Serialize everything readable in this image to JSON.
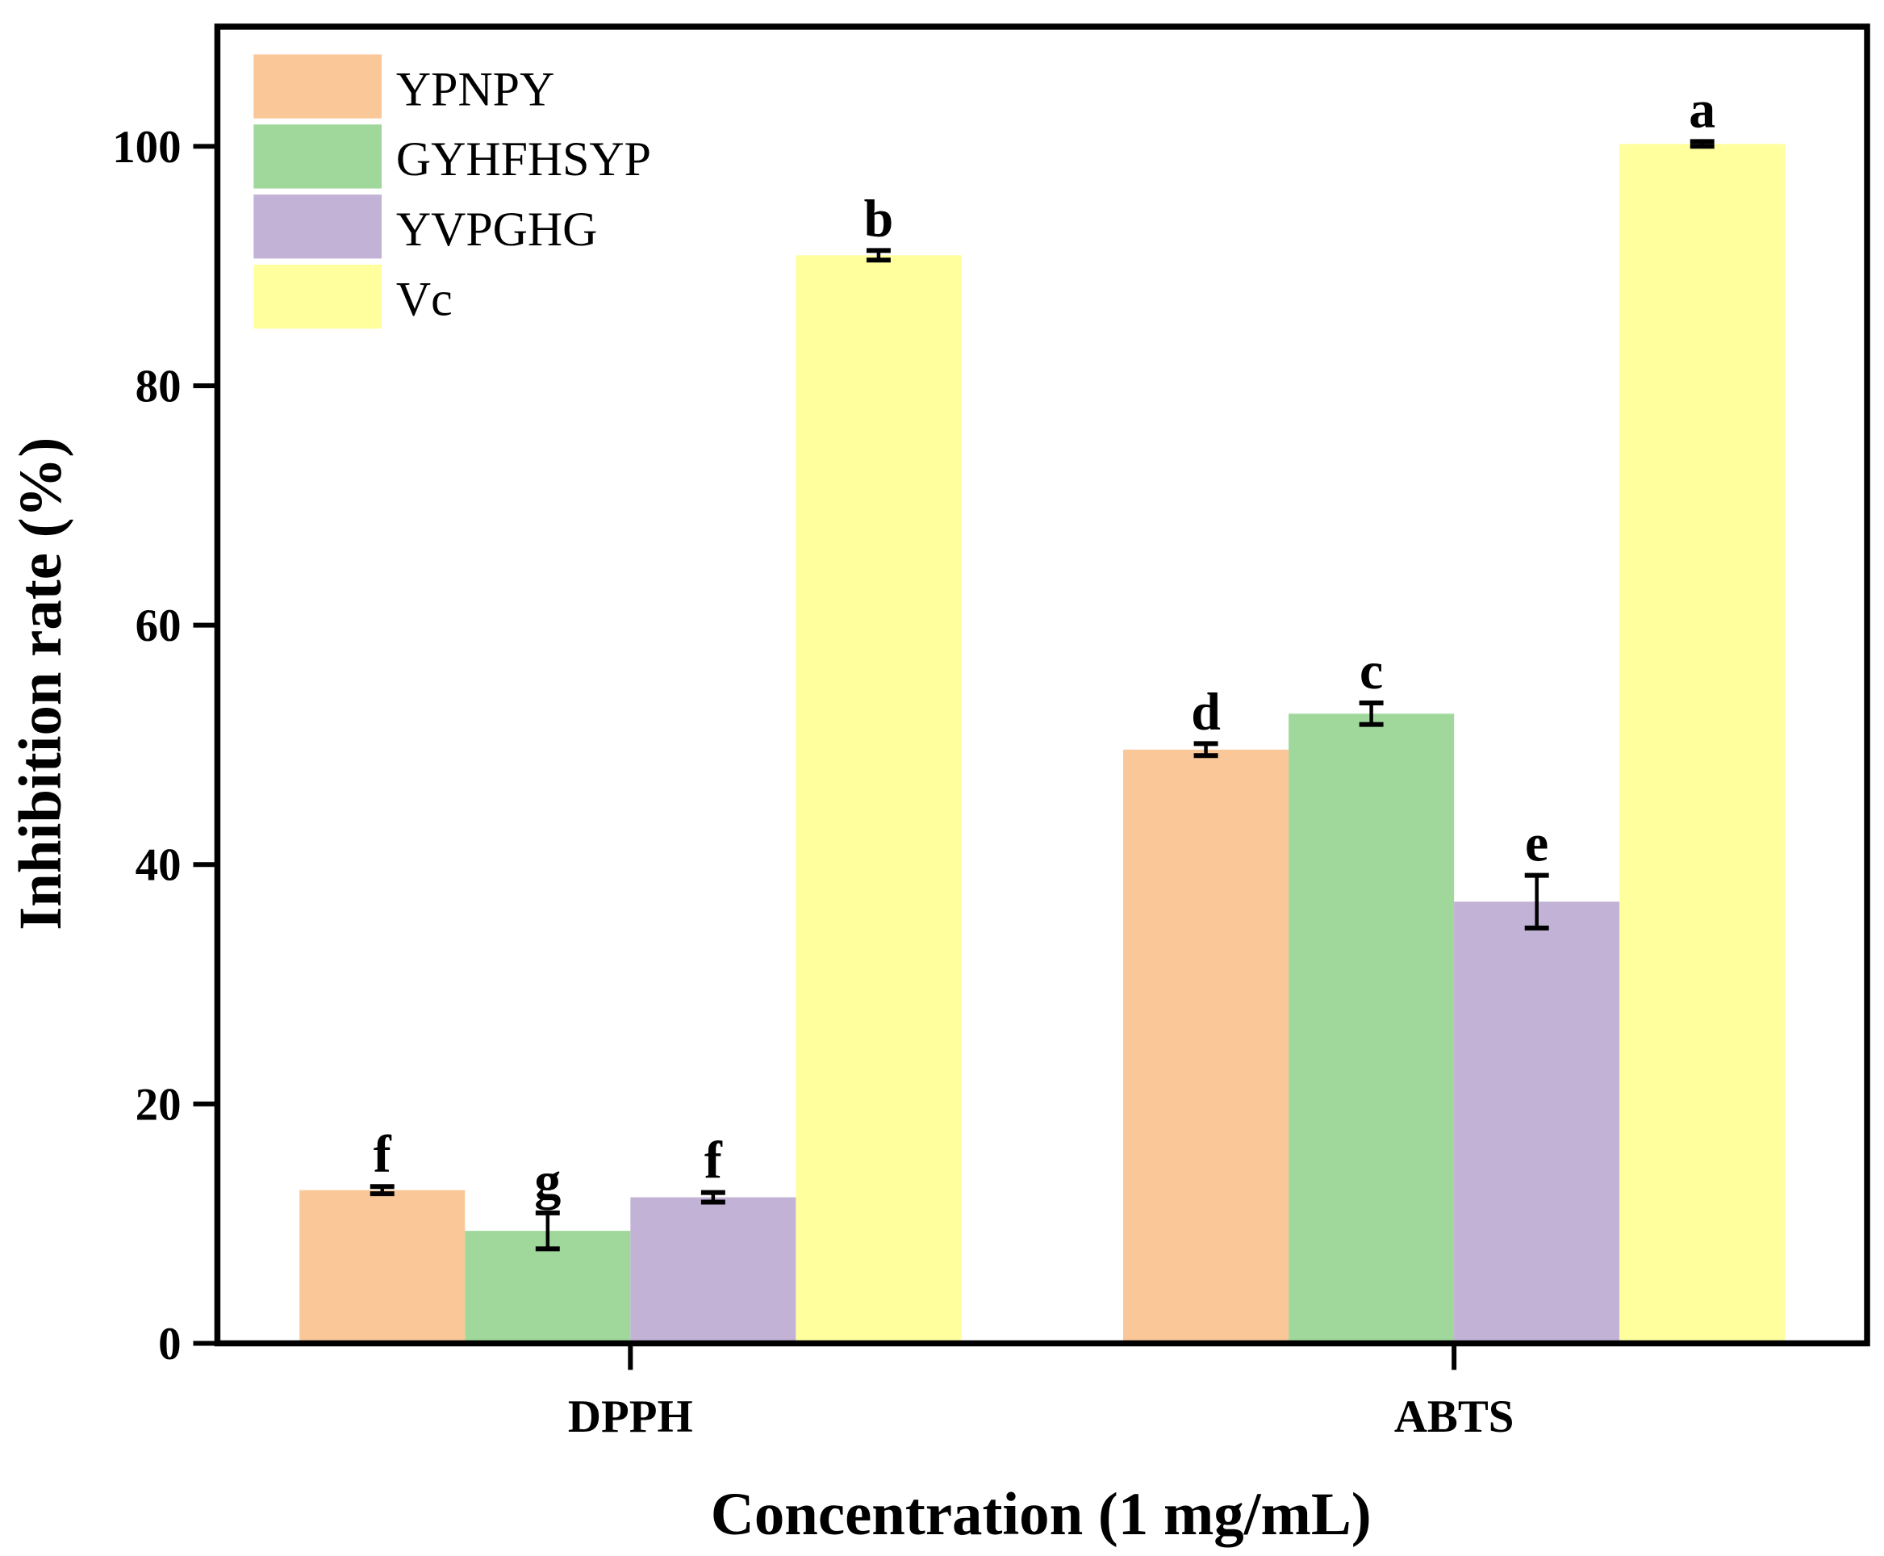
{
  "chart_data": {
    "type": "bar",
    "title": "",
    "xlabel": "Concentration (1 mg/mL)",
    "ylabel": "Inhibition rate (%)",
    "categories": [
      "DPPH",
      "ABTS"
    ],
    "ylim": [
      0,
      110
    ],
    "yticks": [
      0,
      20,
      40,
      60,
      80,
      100
    ],
    "grid": false,
    "legend_position": "top-left",
    "series": [
      {
        "name": "YPNPY",
        "color": "#FAC898",
        "values": [
          12.8,
          49.6
        ],
        "errors": [
          0.3,
          0.5
        ],
        "labels": [
          "f",
          "d"
        ]
      },
      {
        "name": "GYHFHSYP",
        "color": "#A0D89C",
        "values": [
          9.4,
          52.6
        ],
        "errors": [
          1.5,
          0.9
        ],
        "labels": [
          "g",
          "c"
        ]
      },
      {
        "name": "YVPGHG",
        "color": "#C2B2D6",
        "values": [
          12.2,
          36.9
        ],
        "errors": [
          0.4,
          2.2
        ],
        "labels": [
          "f",
          "e"
        ]
      },
      {
        "name": "Vc",
        "color": "#FFFF9E",
        "values": [
          90.9,
          100.2
        ],
        "errors": [
          0.4,
          0.2
        ],
        "labels": [
          "b",
          "a"
        ]
      }
    ]
  }
}
